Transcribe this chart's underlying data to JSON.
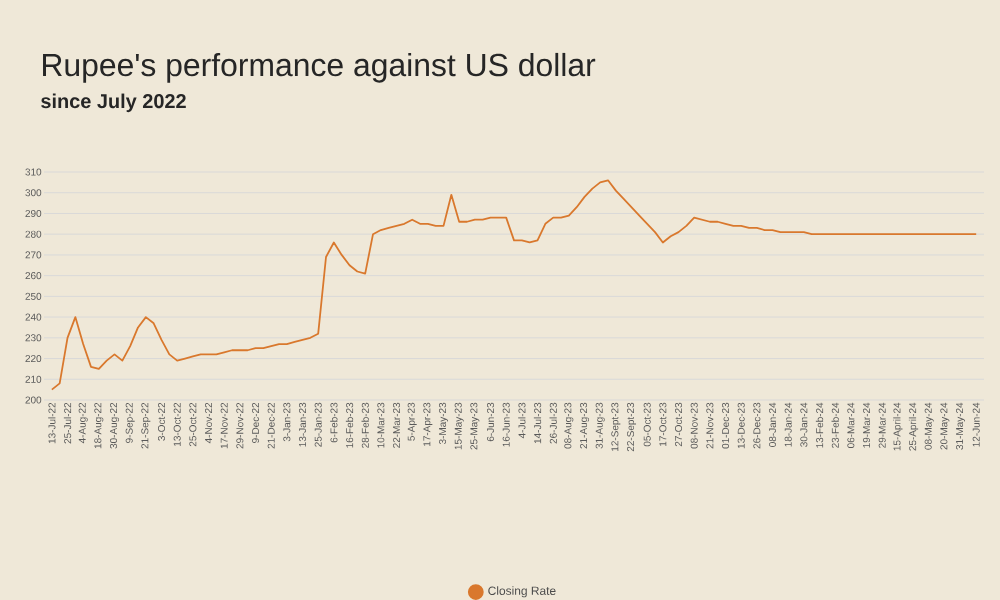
{
  "chart_data": {
    "type": "line",
    "title": "Rupee's performance against US dollar",
    "subtitle": "since July 2022",
    "categories": [
      "13-Jul-22",
      null,
      "25-Jul-22",
      null,
      "4-Aug-22",
      null,
      "18-Aug-22",
      null,
      "30-Aug-22",
      null,
      "9-Sep-22",
      null,
      "21-Sep-22",
      null,
      "3-Oct-22",
      null,
      "13-Oct-22",
      null,
      "25-Oct-22",
      null,
      "4-Nov-22",
      null,
      "17-Nov-22",
      null,
      "29-Nov-22",
      null,
      "9-Dec-22",
      null,
      "21-Dec-22",
      null,
      "3-Jan-23",
      null,
      "13-Jan-23",
      null,
      "25-Jan-23",
      null,
      "6-Feb-23",
      null,
      "16-Feb-23",
      null,
      "28-Feb-23",
      null,
      "10-Mar-23",
      null,
      "22-Mar-23",
      null,
      "5-Apr-23",
      null,
      "17-Apr-23",
      null,
      "3-May-23",
      null,
      "15-May-23",
      null,
      "25-May-23",
      null,
      "6-Jun-23",
      null,
      "16-Jun-23",
      null,
      "4-Jul-23",
      null,
      "14-Jul-23",
      null,
      "26-Jul-23",
      null,
      "08-Aug-23",
      null,
      "21-Aug-23",
      null,
      "31-Aug-23",
      null,
      "12-Sept-23",
      null,
      "22-Sept-23",
      null,
      "05-Oct-23",
      null,
      "17-Oct-23",
      null,
      "27-Oct-23",
      null,
      "08-Nov-23",
      null,
      "21-Nov-23",
      null,
      "01-Dec-23",
      null,
      "13-Dec-23",
      null,
      "26-Dec-23",
      null,
      "08-Jan-24",
      null,
      "18-Jan-24",
      null,
      "30-Jan-24",
      null,
      "13-Feb-24",
      null,
      "23-Feb-24",
      null,
      "06-Mar-24",
      null,
      "19-Mar-24",
      null,
      "29-Mar-24",
      null,
      "15-April-24",
      null,
      "25-April-24",
      null,
      "08-May-24",
      null,
      "20-May-24",
      null,
      "31-May-24",
      null,
      "12-Jun-24"
    ],
    "series": [
      {
        "name": "Closing Rate",
        "color": "#d9782d",
        "values": [
          205,
          208,
          230,
          240,
          227,
          216,
          215,
          219,
          222,
          219,
          226,
          235,
          240,
          237,
          229,
          222,
          219,
          220,
          221,
          222,
          222,
          222,
          223,
          224,
          224,
          224,
          225,
          225,
          226,
          227,
          227,
          228,
          229,
          230,
          232,
          269,
          276,
          270,
          265,
          262,
          261,
          280,
          282,
          283,
          284,
          285,
          287,
          285,
          285,
          284,
          284,
          299,
          286,
          286,
          287,
          287,
          288,
          288,
          288,
          277,
          277,
          276,
          277,
          285,
          288,
          288,
          289,
          293,
          298,
          302,
          305,
          306,
          301,
          297,
          293,
          289,
          285,
          281,
          276,
          279,
          281,
          284,
          288,
          287,
          286,
          286,
          285,
          284,
          284,
          283,
          283,
          282,
          282,
          281,
          281,
          281,
          281,
          280,
          280,
          280,
          280,
          280,
          280,
          280,
          280,
          280,
          280,
          280,
          280,
          280,
          280,
          280,
          280,
          280,
          280,
          280,
          280,
          280,
          280
        ]
      }
    ],
    "ylim": [
      200,
      310
    ],
    "yticks": [
      200,
      210,
      220,
      230,
      240,
      250,
      260,
      270,
      280,
      290,
      300,
      310
    ],
    "grid": "y",
    "legend": "bottom"
  }
}
